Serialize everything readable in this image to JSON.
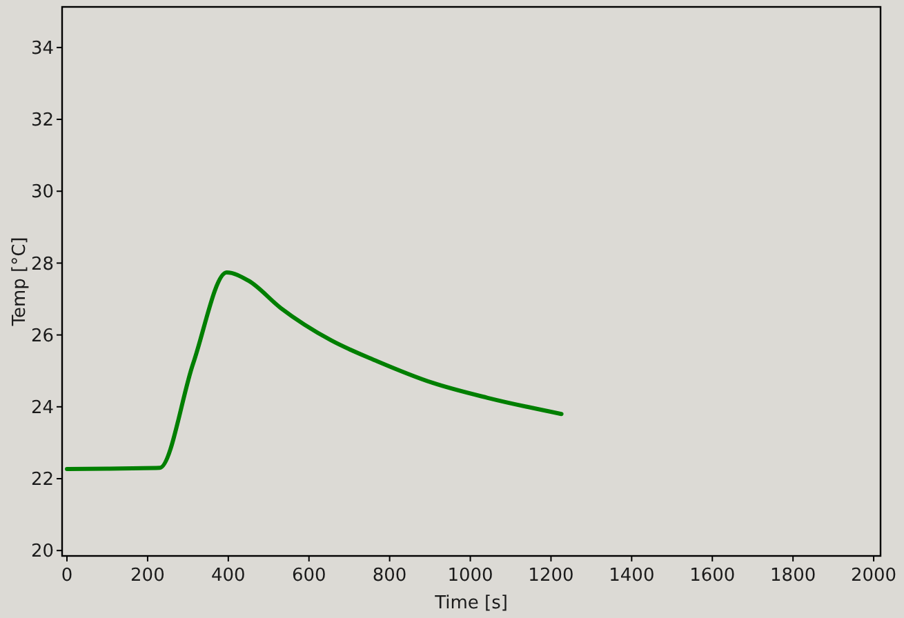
{
  "chart_data": {
    "type": "line",
    "xlabel": "Time [s]",
    "ylabel": "Temp [°C]",
    "xlim": [
      -12,
      2017
    ],
    "xticks": [
      0,
      200,
      400,
      600,
      800,
      1000,
      1200,
      1400,
      1600,
      1800,
      2000
    ],
    "ylim": [
      19.85,
      35.13
    ],
    "yticks": [
      20,
      22,
      24,
      26,
      28,
      30,
      32,
      34
    ],
    "x": [
      0,
      100,
      230,
      313,
      396,
      450,
      530,
      655,
      769,
      906,
      1043,
      1226
    ],
    "series": [
      {
        "color": "#007f00",
        "values": [
          22.27,
          22.28,
          22.3,
          25.21,
          27.74,
          27.51,
          26.75,
          25.85,
          25.27,
          24.67,
          24.25,
          23.8
        ]
      }
    ],
    "grid": false,
    "marker": "none",
    "line_style": "solid"
  }
}
